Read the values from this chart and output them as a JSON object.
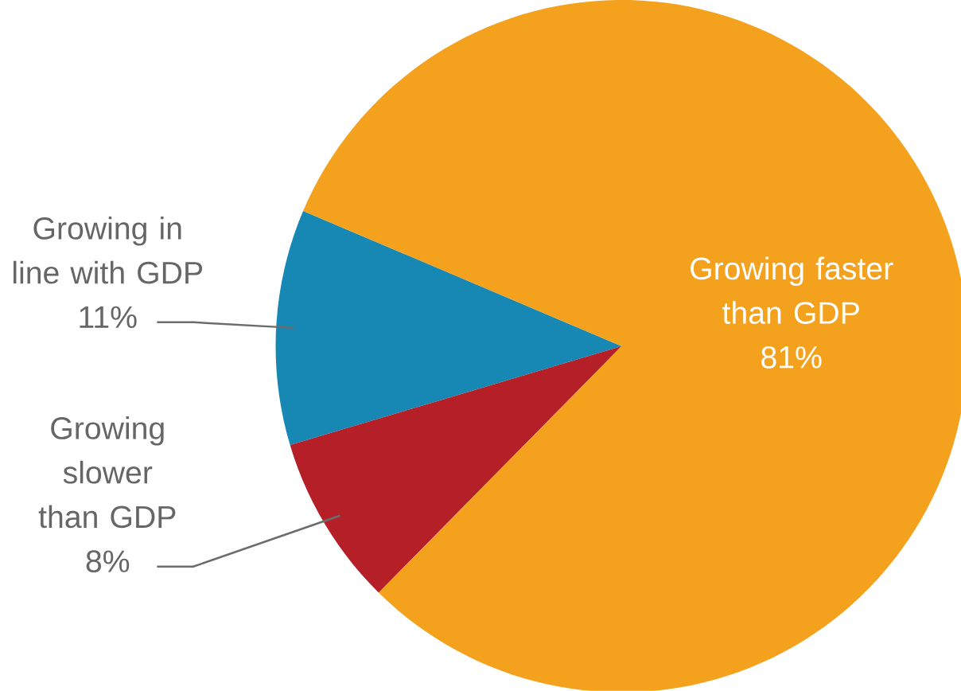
{
  "chart_data": {
    "type": "pie",
    "categories": [
      "Growing faster than GDP",
      "Growing in line with GDP",
      "Growing slower than GDP"
    ],
    "values": [
      81,
      11,
      8
    ],
    "value_labels": [
      "81%",
      "11%",
      "8%"
    ],
    "colors": [
      "#f4a21e",
      "#1787b3",
      "#b51f27"
    ]
  }
}
